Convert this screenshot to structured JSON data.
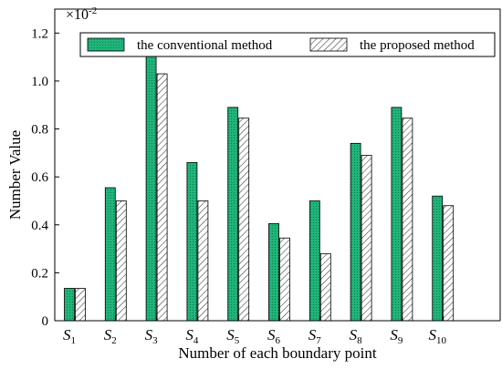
{
  "chart_data": {
    "type": "bar",
    "xlabel": "Number of each boundary point",
    "ylabel": "Number Value",
    "scale_multiplier": "×10",
    "scale_exponent": "-2",
    "ylim": [
      0,
      1.3
    ],
    "yticks": [
      "0",
      "0.2",
      "0.4",
      "0.6",
      "0.8",
      "1.0",
      "1.2"
    ],
    "categories": [
      {
        "base": "S",
        "sub": "1"
      },
      {
        "base": "S",
        "sub": "2"
      },
      {
        "base": "S",
        "sub": "3"
      },
      {
        "base": "S",
        "sub": "4"
      },
      {
        "base": "S",
        "sub": "5"
      },
      {
        "base": "S",
        "sub": "6"
      },
      {
        "base": "S",
        "sub": "7"
      },
      {
        "base": "S",
        "sub": "8"
      },
      {
        "base": "S",
        "sub": "9"
      },
      {
        "base": "S",
        "sub": "10"
      }
    ],
    "series": [
      {
        "name": "the conventional method",
        "color": "#1fb57a",
        "pattern": "dotted-fill",
        "values": [
          0.135,
          0.555,
          1.135,
          0.66,
          0.89,
          0.405,
          0.5,
          0.74,
          0.89,
          0.52
        ]
      },
      {
        "name": "the proposed method",
        "color": "#ffffff",
        "pattern": "hatched",
        "values": [
          0.135,
          0.5,
          1.03,
          0.5,
          0.845,
          0.345,
          0.28,
          0.69,
          0.845,
          0.48
        ]
      }
    ],
    "legend_position": "top"
  }
}
